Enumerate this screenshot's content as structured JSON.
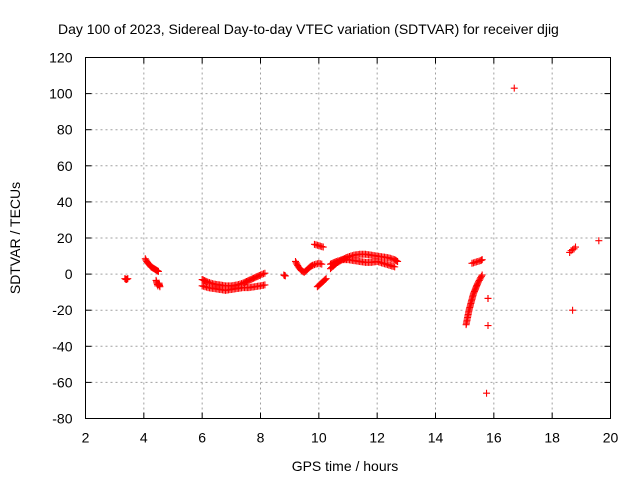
{
  "chart_data": {
    "type": "scatter",
    "title": "Day 100 of 2023, Sidereal Day-to-day VTEC variation (SDTVAR) for receiver djig",
    "xlabel": "GPS time / hours",
    "ylabel": "SDTVAR / TECUs",
    "xlim": [
      2,
      20
    ],
    "ylim": [
      -80,
      120
    ],
    "xticks": [
      2,
      4,
      6,
      8,
      10,
      12,
      14,
      16,
      18,
      20
    ],
    "yticks": [
      -80,
      -60,
      -40,
      -20,
      0,
      20,
      40,
      60,
      80,
      100,
      120
    ],
    "grid": true,
    "marker": "+",
    "color": "#ff0000",
    "series": [
      {
        "name": "SDTVAR",
        "segments": [
          {
            "x": [
              3.35,
              3.4,
              3.45
            ],
            "y": [
              -2.5,
              -3.0,
              -2.5
            ]
          },
          {
            "x": [
              4.05,
              4.1,
              4.15,
              4.2,
              4.25,
              4.3,
              4.35,
              4.4,
              4.45,
              4.5
            ],
            "y": [
              8.5,
              7.0,
              6.0,
              5.0,
              4.0,
              3.5,
              3.0,
              2.5,
              2.0,
              1.5
            ]
          },
          {
            "x": [
              4.42,
              4.45,
              4.48,
              4.52,
              4.55
            ],
            "y": [
              -3.5,
              -5.0,
              -6.5,
              -5.0,
              -7.0
            ]
          },
          {
            "x": [
              6.0,
              6.2,
              6.4,
              6.6,
              6.8,
              7.0,
              7.2,
              7.4,
              7.6,
              7.8,
              8.0,
              8.15
            ],
            "y": [
              -3.0,
              -4.5,
              -5.5,
              -6.0,
              -6.5,
              -6.5,
              -6.0,
              -5.0,
              -3.5,
              -2.0,
              -0.5,
              0.5
            ]
          },
          {
            "x": [
              6.0,
              6.2,
              6.4,
              6.6,
              6.8,
              7.0,
              7.2,
              7.4,
              7.6,
              7.8,
              8.0,
              8.15
            ],
            "y": [
              -6.5,
              -7.5,
              -8.0,
              -8.5,
              -9.0,
              -8.5,
              -8.0,
              -7.5,
              -7.5,
              -7.0,
              -6.5,
              -6.0
            ]
          },
          {
            "x": [
              8.8,
              8.85
            ],
            "y": [
              -0.5,
              -1.0
            ]
          },
          {
            "x": [
              9.2,
              9.3,
              9.4,
              9.5,
              9.6,
              9.7,
              9.8,
              9.9,
              10.0,
              10.1
            ],
            "y": [
              7.0,
              4.0,
              2.0,
              1.0,
              2.5,
              4.0,
              5.0,
              5.5,
              6.0,
              5.5
            ]
          },
          {
            "x": [
              9.85,
              9.95,
              10.05,
              10.15
            ],
            "y": [
              16.5,
              16.0,
              15.5,
              15.0
            ]
          },
          {
            "x": [
              9.95,
              10.05,
              10.15,
              10.25
            ],
            "y": [
              -7.0,
              -5.5,
              -4.0,
              -2.5
            ]
          },
          {
            "x": [
              10.4,
              10.6,
              10.8,
              11.0,
              11.2,
              11.4,
              11.6,
              11.8,
              12.0,
              12.2,
              12.4,
              12.6,
              12.7
            ],
            "y": [
              3.0,
              6.0,
              8.0,
              9.5,
              10.5,
              11.0,
              11.0,
              10.5,
              10.0,
              9.5,
              9.0,
              8.0,
              7.0
            ]
          },
          {
            "x": [
              10.4,
              10.6,
              10.8,
              11.0,
              11.2,
              11.4,
              11.6,
              11.8,
              12.0,
              12.2,
              12.4,
              12.6
            ],
            "y": [
              5.5,
              7.0,
              8.0,
              8.0,
              7.5,
              7.0,
              6.5,
              6.5,
              7.0,
              6.0,
              5.0,
              4.0
            ]
          },
          {
            "x": [
              15.05,
              15.1,
              15.15,
              15.2,
              15.25,
              15.3,
              15.35,
              15.4,
              15.45,
              15.5,
              15.55,
              15.6
            ],
            "y": [
              -28.0,
              -24.0,
              -20.0,
              -17.0,
              -14.0,
              -11.0,
              -9.0,
              -7.0,
              -5.0,
              -3.5,
              -2.0,
              -0.5
            ]
          },
          {
            "x": [
              15.25,
              15.35,
              15.45,
              15.55,
              15.6
            ],
            "y": [
              6.0,
              6.5,
              7.0,
              7.5,
              8.0
            ]
          },
          {
            "x": [
              15.75,
              15.8,
              15.8,
              15.8,
              16.7
            ],
            "y": [
              -66.0,
              -13.5,
              -28.5,
              -13.5,
              103.0
            ]
          },
          {
            "x": [
              18.6,
              18.65,
              18.7,
              18.75,
              18.8,
              18.7,
              19.6
            ],
            "y": [
              12.0,
              13.0,
              13.5,
              14.0,
              15.0,
              -20.0,
              18.5
            ]
          }
        ]
      }
    ]
  }
}
